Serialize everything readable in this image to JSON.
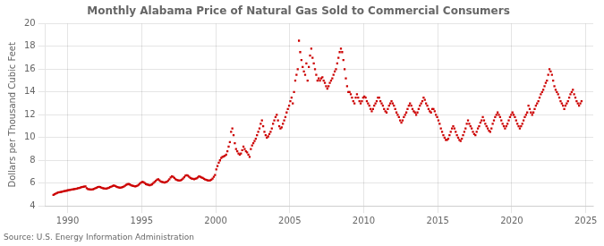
{
  "chart_data": {
    "type": "scatter",
    "title": "Monthly Alabama Price of Natural Gas Sold to Commercial Consumers",
    "ylabel": "Dollars per Thousand Cubic Feet",
    "annotation": "Source: U.S. Energy Information Administration",
    "color": "#cc0000",
    "marker": "square",
    "grid": true,
    "xlim": [
      1988.5,
      2025.5
    ],
    "ylim": [
      4,
      20
    ],
    "xticks": [
      1990,
      1995,
      2000,
      2005,
      2010,
      2015,
      2020,
      2025
    ],
    "yticks": [
      4,
      6,
      8,
      10,
      12,
      14,
      16,
      18,
      20
    ],
    "x": [
      1989.0416666666667,
      1989.125,
      1989.2083333333333,
      1989.2916666666667,
      1989.375,
      1989.4583333333333,
      1989.5416666666667,
      1989.625,
      1989.7083333333333,
      1989.7916666666667,
      1989.875,
      1989.9583333333333,
      1990.0416666666667,
      1990.125,
      1990.2083333333333,
      1990.2916666666667,
      1990.375,
      1990.4583333333333,
      1990.5416666666667,
      1990.625,
      1990.7083333333333,
      1990.7916666666667,
      1990.875,
      1990.9583333333333,
      1991.0416666666667,
      1991.125,
      1991.2083333333333,
      1991.2916666666667,
      1991.375,
      1991.4583333333333,
      1991.5416666666667,
      1991.625,
      1991.7083333333333,
      1991.7916666666667,
      1991.875,
      1991.9583333333333,
      1992.0416666666667,
      1992.125,
      1992.2083333333333,
      1992.2916666666667,
      1992.375,
      1992.4583333333333,
      1992.5416666666667,
      1992.625,
      1992.7083333333333,
      1992.7916666666667,
      1992.875,
      1992.9583333333333,
      1993.0416666666667,
      1993.125,
      1993.2083333333333,
      1993.2916666666667,
      1993.375,
      1993.4583333333333,
      1993.5416666666667,
      1993.625,
      1993.7083333333333,
      1993.7916666666667,
      1993.875,
      1993.9583333333333,
      1994.0416666666667,
      1994.125,
      1994.2083333333333,
      1994.2916666666667,
      1994.375,
      1994.4583333333333,
      1994.5416666666667,
      1994.625,
      1994.7083333333333,
      1994.7916666666667,
      1994.875,
      1994.9583333333333,
      1995.0416666666667,
      1995.125,
      1995.2083333333333,
      1995.2916666666667,
      1995.375,
      1995.4583333333333,
      1995.5416666666667,
      1995.625,
      1995.7083333333333,
      1995.7916666666667,
      1995.875,
      1995.9583333333333,
      1996.0416666666667,
      1996.125,
      1996.2083333333333,
      1996.2916666666667,
      1996.375,
      1996.4583333333333,
      1996.5416666666667,
      1996.625,
      1996.7083333333333,
      1996.7916666666667,
      1996.875,
      1996.9583333333333,
      1997.0416666666667,
      1997.125,
      1997.2083333333333,
      1997.2916666666667,
      1997.375,
      1997.4583333333333,
      1997.5416666666667,
      1997.625,
      1997.7083333333333,
      1997.7916666666667,
      1997.875,
      1997.9583333333333,
      1998.0416666666667,
      1998.125,
      1998.2083333333333,
      1998.2916666666667,
      1998.375,
      1998.4583333333333,
      1998.5416666666667,
      1998.625,
      1998.7083333333333,
      1998.7916666666667,
      1998.875,
      1998.9583333333333,
      1999.0416666666667,
      1999.125,
      1999.2083333333333,
      1999.2916666666667,
      1999.375,
      1999.4583333333333,
      1999.5416666666667,
      1999.625,
      1999.7083333333333,
      1999.7916666666667,
      1999.875,
      1999.9583333333333,
      2000.0416666666667,
      2000.125,
      2000.2083333333333,
      2000.2916666666667,
      2000.375,
      2000.4583333333333,
      2000.5416666666667,
      2000.625,
      2000.7083333333333,
      2000.7916666666667,
      2000.875,
      2000.9583333333333,
      2001.0416666666667,
      2001.125,
      2001.2083333333333,
      2001.2916666666667,
      2001.375,
      2001.4583333333333,
      2001.5416666666667,
      2001.625,
      2001.7083333333333,
      2001.7916666666667,
      2001.875,
      2001.9583333333333,
      2002.0416666666667,
      2002.125,
      2002.2083333333333,
      2002.2916666666667,
      2002.375,
      2002.4583333333333,
      2002.5416666666667,
      2002.625,
      2002.7083333333333,
      2002.7916666666667,
      2002.875,
      2002.9583333333333,
      2003.0416666666667,
      2003.125,
      2003.2083333333333,
      2003.2916666666667,
      2003.375,
      2003.4583333333333,
      2003.5416666666667,
      2003.625,
      2003.7083333333333,
      2003.7916666666667,
      2003.875,
      2003.9583333333333,
      2004.0416666666667,
      2004.125,
      2004.2083333333333,
      2004.2916666666667,
      2004.375,
      2004.4583333333333,
      2004.5416666666667,
      2004.625,
      2004.7083333333333,
      2004.7916666666667,
      2004.875,
      2004.9583333333333,
      2005.0416666666667,
      2005.125,
      2005.2083333333333,
      2005.2916666666667,
      2005.375,
      2005.4583333333333,
      2005.5416666666667,
      2005.625,
      2005.7083333333333,
      2005.7916666666667,
      2005.875,
      2005.9583333333333,
      2006.0416666666667,
      2006.125,
      2006.2083333333333,
      2006.2916666666667,
      2006.375,
      2006.4583333333333,
      2006.5416666666667,
      2006.625,
      2006.7083333333333,
      2006.7916666666667,
      2006.875,
      2006.9583333333333,
      2007.0416666666667,
      2007.125,
      2007.2083333333333,
      2007.2916666666667,
      2007.375,
      2007.4583333333333,
      2007.5416666666667,
      2007.625,
      2007.7083333333333,
      2007.7916666666667,
      2007.875,
      2007.9583333333333,
      2008.0416666666667,
      2008.125,
      2008.2083333333333,
      2008.2916666666667,
      2008.375,
      2008.4583333333333,
      2008.5416666666667,
      2008.625,
      2008.7083333333333,
      2008.7916666666667,
      2008.875,
      2008.9583333333333,
      2009.0416666666667,
      2009.125,
      2009.2083333333333,
      2009.2916666666667,
      2009.375,
      2009.4583333333333,
      2009.5416666666667,
      2009.625,
      2009.7083333333333,
      2009.7916666666667,
      2009.875,
      2009.9583333333333,
      2010.0416666666667,
      2010.125,
      2010.2083333333333,
      2010.2916666666667,
      2010.375,
      2010.4583333333333,
      2010.5416666666667,
      2010.625,
      2010.7083333333333,
      2010.7916666666667,
      2010.875,
      2010.9583333333333,
      2011.0416666666667,
      2011.125,
      2011.2083333333333,
      2011.2916666666667,
      2011.375,
      2011.4583333333333,
      2011.5416666666667,
      2011.625,
      2011.7083333333333,
      2011.7916666666667,
      2011.875,
      2011.9583333333333,
      2012.0416666666667,
      2012.125,
      2012.2083333333333,
      2012.2916666666667,
      2012.375,
      2012.4583333333333,
      2012.5416666666667,
      2012.625,
      2012.7083333333333,
      2012.7916666666667,
      2012.875,
      2012.9583333333333,
      2013.0416666666667,
      2013.125,
      2013.2083333333333,
      2013.2916666666667,
      2013.375,
      2013.4583333333333,
      2013.5416666666667,
      2013.625,
      2013.7083333333333,
      2013.7916666666667,
      2013.875,
      2013.9583333333333,
      2014.0416666666667,
      2014.125,
      2014.2083333333333,
      2014.2916666666667,
      2014.375,
      2014.4583333333333,
      2014.5416666666667,
      2014.625,
      2014.7083333333333,
      2014.7916666666667,
      2014.875,
      2014.9583333333333,
      2015.0416666666667,
      2015.125,
      2015.2083333333333,
      2015.2916666666667,
      2015.375,
      2015.4583333333333,
      2015.5416666666667,
      2015.625,
      2015.7083333333333,
      2015.7916666666667,
      2015.875,
      2015.9583333333333,
      2016.0416666666667,
      2016.125,
      2016.2083333333333,
      2016.2916666666667,
      2016.375,
      2016.4583333333333,
      2016.5416666666667,
      2016.625,
      2016.7083333333333,
      2016.7916666666667,
      2016.875,
      2016.9583333333333,
      2017.0416666666667,
      2017.125,
      2017.2083333333333,
      2017.2916666666667,
      2017.375,
      2017.4583333333333,
      2017.5416666666667,
      2017.625,
      2017.7083333333333,
      2017.7916666666667,
      2017.875,
      2017.9583333333333,
      2018.0416666666667,
      2018.125,
      2018.2083333333333,
      2018.2916666666667,
      2018.375,
      2018.4583333333333,
      2018.5416666666667,
      2018.625,
      2018.7083333333333,
      2018.7916666666667,
      2018.875,
      2018.9583333333333,
      2019.0416666666667,
      2019.125,
      2019.2083333333333,
      2019.2916666666667,
      2019.375,
      2019.4583333333333,
      2019.5416666666667,
      2019.625,
      2019.7083333333333,
      2019.7916666666667,
      2019.875,
      2019.9583333333333,
      2020.0416666666667,
      2020.125,
      2020.2083333333333,
      2020.2916666666667,
      2020.375,
      2020.4583333333333,
      2020.5416666666667,
      2020.625,
      2020.7083333333333,
      2020.7916666666667,
      2020.875,
      2020.9583333333333,
      2021.0416666666667,
      2021.125,
      2021.2083333333333,
      2021.2916666666667,
      2021.375,
      2021.4583333333333,
      2021.5416666666667,
      2021.625,
      2021.7083333333333,
      2021.7916666666667,
      2021.875,
      2021.9583333333333,
      2022.0416666666667,
      2022.125,
      2022.2083333333333,
      2022.2916666666667,
      2022.375,
      2022.4583333333333,
      2022.5416666666667,
      2022.625,
      2022.7083333333333,
      2022.7916666666667,
      2022.875,
      2022.9583333333333,
      2023.0416666666667,
      2023.125,
      2023.2083333333333,
      2023.2916666666667,
      2023.375,
      2023.4583333333333,
      2023.5416666666667,
      2023.625,
      2023.7083333333333,
      2023.7916666666667,
      2023.875,
      2023.9583333333333,
      2024.0416666666667,
      2024.125,
      2024.2083333333333,
      2024.2916666666667,
      2024.375,
      2024.4583333333333,
      2024.5416666666667,
      2024.625,
      2024.7083333333333
    ],
    "values": [
      4.97,
      5.02,
      5.08,
      5.15,
      5.18,
      5.2,
      5.22,
      5.25,
      5.28,
      5.3,
      5.32,
      5.35,
      5.38,
      5.4,
      5.42,
      5.44,
      5.46,
      5.48,
      5.5,
      5.52,
      5.55,
      5.58,
      5.62,
      5.65,
      5.68,
      5.7,
      5.72,
      5.55,
      5.48,
      5.45,
      5.44,
      5.43,
      5.45,
      5.5,
      5.55,
      5.6,
      5.65,
      5.68,
      5.65,
      5.6,
      5.55,
      5.53,
      5.52,
      5.52,
      5.55,
      5.6,
      5.65,
      5.7,
      5.75,
      5.8,
      5.75,
      5.7,
      5.65,
      5.62,
      5.6,
      5.62,
      5.65,
      5.7,
      5.78,
      5.85,
      5.9,
      5.92,
      5.88,
      5.82,
      5.78,
      5.75,
      5.72,
      5.73,
      5.77,
      5.85,
      5.95,
      6.05,
      6.1,
      6.08,
      6.0,
      5.92,
      5.88,
      5.85,
      5.82,
      5.85,
      5.9,
      6.0,
      6.1,
      6.2,
      6.3,
      6.35,
      6.25,
      6.15,
      6.1,
      6.08,
      6.05,
      6.08,
      6.12,
      6.22,
      6.35,
      6.5,
      6.6,
      6.55,
      6.45,
      6.35,
      6.28,
      6.25,
      6.22,
      6.25,
      6.3,
      6.4,
      6.52,
      6.65,
      6.7,
      6.65,
      6.55,
      6.45,
      6.4,
      6.38,
      6.35,
      6.38,
      6.42,
      6.5,
      6.6,
      6.55,
      6.5,
      6.45,
      6.38,
      6.32,
      6.28,
      6.25,
      6.22,
      6.25,
      6.3,
      6.4,
      6.55,
      6.72,
      7.2,
      7.5,
      7.8,
      8.0,
      8.2,
      8.3,
      8.35,
      8.4,
      8.5,
      8.8,
      9.2,
      9.6,
      10.5,
      10.8,
      10.2,
      9.5,
      9.0,
      8.8,
      8.6,
      8.5,
      8.6,
      8.9,
      9.2,
      9.0,
      8.8,
      8.7,
      8.5,
      8.3,
      9.0,
      9.3,
      9.5,
      9.7,
      9.9,
      10.2,
      10.5,
      10.8,
      11.2,
      11.5,
      11.0,
      10.5,
      10.2,
      10.0,
      10.1,
      10.3,
      10.5,
      10.8,
      11.2,
      11.5,
      11.8,
      12.0,
      11.5,
      11.0,
      10.8,
      10.9,
      11.2,
      11.5,
      11.8,
      12.2,
      12.5,
      12.8,
      13.2,
      13.5,
      13.0,
      14.0,
      15.0,
      15.5,
      16.0,
      18.5,
      17.5,
      16.8,
      16.2,
      15.8,
      15.5,
      16.5,
      15.0,
      16.2,
      17.2,
      17.8,
      17.0,
      16.5,
      16.0,
      15.5,
      15.0,
      15.2,
      15.0,
      15.2,
      15.3,
      15.0,
      14.8,
      14.5,
      14.3,
      14.5,
      14.8,
      15.0,
      15.2,
      15.5,
      15.8,
      16.0,
      16.5,
      17.0,
      17.5,
      17.8,
      17.5,
      16.8,
      16.0,
      15.2,
      14.5,
      14.0,
      14.0,
      13.8,
      13.5,
      13.2,
      13.0,
      13.5,
      13.8,
      13.5,
      13.2,
      13.0,
      13.2,
      13.5,
      13.6,
      13.5,
      13.2,
      13.0,
      12.8,
      12.5,
      12.3,
      12.5,
      12.8,
      13.0,
      13.2,
      13.5,
      13.5,
      13.2,
      13.0,
      12.8,
      12.5,
      12.3,
      12.2,
      12.5,
      12.8,
      13.0,
      13.2,
      13.0,
      12.8,
      12.5,
      12.2,
      12.0,
      11.8,
      11.5,
      11.3,
      11.5,
      11.8,
      12.0,
      12.2,
      12.5,
      12.8,
      13.0,
      12.8,
      12.5,
      12.3,
      12.2,
      12.0,
      12.2,
      12.5,
      12.8,
      13.0,
      13.2,
      13.5,
      13.3,
      13.0,
      12.8,
      12.5,
      12.3,
      12.2,
      12.5,
      12.5,
      12.3,
      12.0,
      11.8,
      11.5,
      11.2,
      10.8,
      10.5,
      10.2,
      10.0,
      9.8,
      9.8,
      9.9,
      10.2,
      10.5,
      10.8,
      11.0,
      10.8,
      10.5,
      10.2,
      10.0,
      9.8,
      9.7,
      9.9,
      10.2,
      10.5,
      10.8,
      11.2,
      11.5,
      11.2,
      11.0,
      10.8,
      10.5,
      10.3,
      10.2,
      10.5,
      10.8,
      11.0,
      11.3,
      11.5,
      11.8,
      11.5,
      11.2,
      11.0,
      10.8,
      10.6,
      10.5,
      10.8,
      11.2,
      11.5,
      11.8,
      12.0,
      12.2,
      12.0,
      11.8,
      11.5,
      11.2,
      11.0,
      10.8,
      11.0,
      11.2,
      11.5,
      11.8,
      12.0,
      12.2,
      12.0,
      11.8,
      11.5,
      11.2,
      11.0,
      10.8,
      11.0,
      11.2,
      11.5,
      11.8,
      12.0,
      12.2,
      12.8,
      12.5,
      12.2,
      12.0,
      12.2,
      12.5,
      12.8,
      13.0,
      13.2,
      13.5,
      13.8,
      14.0,
      14.2,
      14.5,
      14.8,
      15.0,
      15.5,
      16.0,
      15.8,
      15.5,
      15.0,
      14.5,
      14.2,
      14.0,
      13.8,
      13.5,
      13.2,
      13.0,
      12.8,
      12.5,
      12.8,
      13.0,
      13.2,
      13.5,
      13.8,
      14.0,
      14.2,
      13.8,
      13.5,
      13.2,
      13.0,
      12.8,
      13.0,
      13.2
    ]
  }
}
